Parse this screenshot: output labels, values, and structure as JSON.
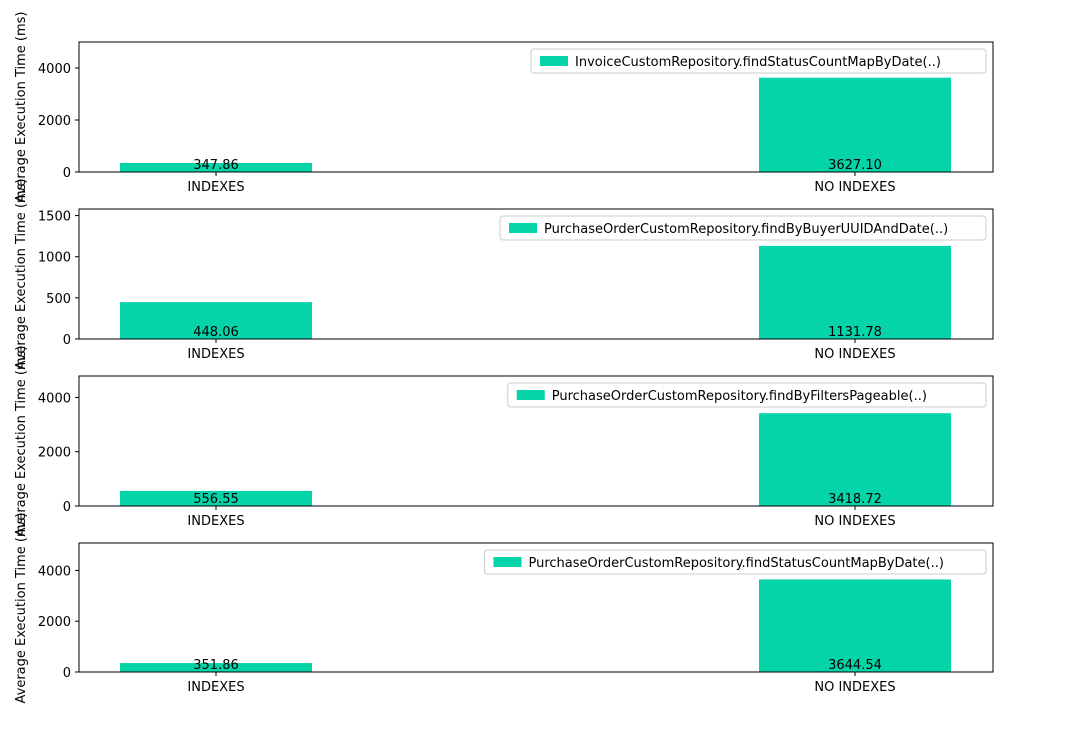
{
  "figure": {
    "ylabels": [
      "Average Execution Time (ms)",
      "Average Execution Time (ms)",
      "Average Execution Time (ms)",
      "Average Execution Time (ms)"
    ]
  },
  "colors": {
    "bar": "#05d3a8",
    "axis": "#000000",
    "legend_border": "#cccccc"
  },
  "chart_data": [
    {
      "type": "bar",
      "categories": [
        "INDEXES",
        "NO INDEXES"
      ],
      "series": [
        {
          "name": "InvoiceCustomRepository.findStatusCountMapByDate(..)",
          "values": [
            347.86,
            3627.1
          ]
        }
      ],
      "value_labels": [
        "347.86",
        "3627.10"
      ],
      "ylabel": "Average Execution Time (ms)",
      "ylim": [
        0,
        5000
      ],
      "yticks": [
        0,
        2000,
        4000
      ],
      "grid": false,
      "legend": "upper right"
    },
    {
      "type": "bar",
      "categories": [
        "INDEXES",
        "NO INDEXES"
      ],
      "series": [
        {
          "name": "PurchaseOrderCustomRepository.findByBuyerUUIDAndDate(..)",
          "values": [
            448.06,
            1131.78
          ]
        }
      ],
      "value_labels": [
        "448.06",
        "1131.78"
      ],
      "ylabel": "Average Execution Time (ms)",
      "ylim": [
        0,
        1580
      ],
      "yticks": [
        0,
        500,
        1000,
        1500
      ],
      "grid": false,
      "legend": "upper right"
    },
    {
      "type": "bar",
      "categories": [
        "INDEXES",
        "NO INDEXES"
      ],
      "series": [
        {
          "name": "PurchaseOrderCustomRepository.findByFiltersPageable(..)",
          "values": [
            556.55,
            3418.72
          ]
        }
      ],
      "value_labels": [
        "556.55",
        "3418.72"
      ],
      "ylabel": "Average Execution Time (ms)",
      "ylim": [
        0,
        4790
      ],
      "yticks": [
        0,
        2000,
        4000
      ],
      "grid": false,
      "legend": "upper right"
    },
    {
      "type": "bar",
      "categories": [
        "INDEXES",
        "NO INDEXES"
      ],
      "series": [
        {
          "name": "PurchaseOrderCustomRepository.findStatusCountMapByDate(..)",
          "values": [
            351.86,
            3644.54
          ]
        }
      ],
      "value_labels": [
        "351.86",
        "3644.54"
      ],
      "ylabel": "Average Execution Time (ms)",
      "ylim": [
        0,
        5080
      ],
      "yticks": [
        0,
        2000,
        4000
      ],
      "grid": false,
      "legend": "upper right"
    }
  ]
}
